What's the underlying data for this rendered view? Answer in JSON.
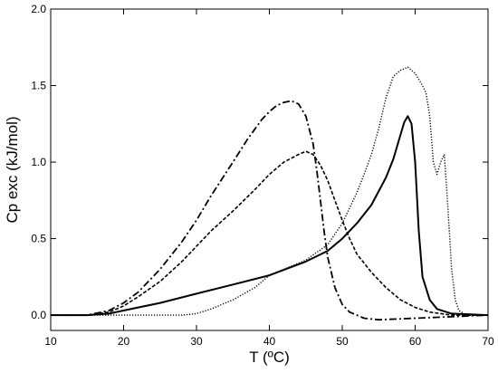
{
  "chart_data": {
    "type": "line",
    "xlabel": "T (ºC)",
    "ylabel": "Cp exc (kJ/mol)",
    "xlim": [
      10,
      70
    ],
    "ylim": [
      -0.1,
      2.0
    ],
    "xticks": [
      10,
      20,
      30,
      40,
      50,
      60,
      70
    ],
    "yticks": [
      0.0,
      0.5,
      1.0,
      1.5,
      2.0
    ],
    "xtick_labels": [
      "10",
      "20",
      "30",
      "40",
      "50",
      "60",
      "70"
    ],
    "ytick_labels": [
      "0.0",
      "0.5",
      "1.0",
      "1.5",
      "2.0"
    ],
    "grid": false,
    "legend": "none",
    "series": [
      {
        "style": "solid",
        "x": [
          10,
          15,
          18,
          20,
          22,
          25,
          30,
          35,
          40,
          45,
          48,
          50,
          52,
          54,
          56,
          57,
          58,
          58.5,
          59,
          59.5,
          60,
          60.5,
          61,
          62,
          63,
          65,
          70
        ],
        "y": [
          0.0,
          0.0,
          0.01,
          0.03,
          0.05,
          0.08,
          0.14,
          0.2,
          0.26,
          0.35,
          0.42,
          0.5,
          0.6,
          0.72,
          0.9,
          1.02,
          1.18,
          1.26,
          1.3,
          1.25,
          1.0,
          0.55,
          0.25,
          0.1,
          0.04,
          0.01,
          0.0
        ]
      },
      {
        "style": "dotted",
        "x": [
          10,
          20,
          25,
          28,
          30,
          32,
          35,
          38,
          40,
          42,
          45,
          48,
          50,
          52,
          53,
          54,
          55,
          56,
          57,
          58,
          59,
          60,
          61,
          61.5,
          62,
          62.5,
          63,
          63.5,
          64,
          64.5,
          65,
          65.5,
          66,
          67,
          70
        ],
        "y": [
          0.0,
          0.0,
          0.0,
          0.0,
          0.01,
          0.04,
          0.1,
          0.18,
          0.26,
          0.3,
          0.36,
          0.46,
          0.6,
          0.8,
          0.92,
          1.05,
          1.22,
          1.42,
          1.56,
          1.6,
          1.62,
          1.58,
          1.5,
          1.45,
          1.3,
          1.0,
          0.92,
          1.0,
          1.05,
          0.7,
          0.3,
          0.1,
          0.03,
          0.0,
          0.0
        ]
      },
      {
        "style": "dashed",
        "x": [
          10,
          15,
          18,
          20,
          22,
          25,
          28,
          30,
          32,
          35,
          38,
          40,
          42,
          44,
          45,
          46,
          47,
          48,
          49,
          50,
          51,
          52,
          54,
          56,
          58,
          60,
          62,
          65,
          70
        ],
        "y": [
          0.0,
          0.0,
          0.02,
          0.06,
          0.12,
          0.22,
          0.35,
          0.45,
          0.55,
          0.68,
          0.82,
          0.92,
          1.0,
          1.05,
          1.07,
          1.05,
          0.98,
          0.88,
          0.75,
          0.62,
          0.5,
          0.4,
          0.28,
          0.18,
          0.1,
          0.05,
          0.02,
          0.0,
          0.0
        ]
      },
      {
        "style": "dash-dot",
        "x": [
          10,
          15,
          18,
          20,
          22,
          25,
          28,
          30,
          32,
          35,
          37,
          39,
          40,
          41,
          42,
          43,
          44,
          45,
          46,
          46.5,
          47,
          47.5,
          48,
          49,
          50,
          51,
          52,
          53,
          55,
          60,
          65,
          70
        ],
        "y": [
          0.0,
          0.0,
          0.03,
          0.08,
          0.15,
          0.3,
          0.48,
          0.62,
          0.78,
          1.0,
          1.15,
          1.28,
          1.33,
          1.37,
          1.39,
          1.4,
          1.38,
          1.3,
          1.12,
          0.95,
          0.75,
          0.55,
          0.38,
          0.18,
          0.07,
          0.02,
          0.0,
          -0.02,
          -0.03,
          -0.02,
          -0.01,
          0.0
        ]
      }
    ]
  }
}
